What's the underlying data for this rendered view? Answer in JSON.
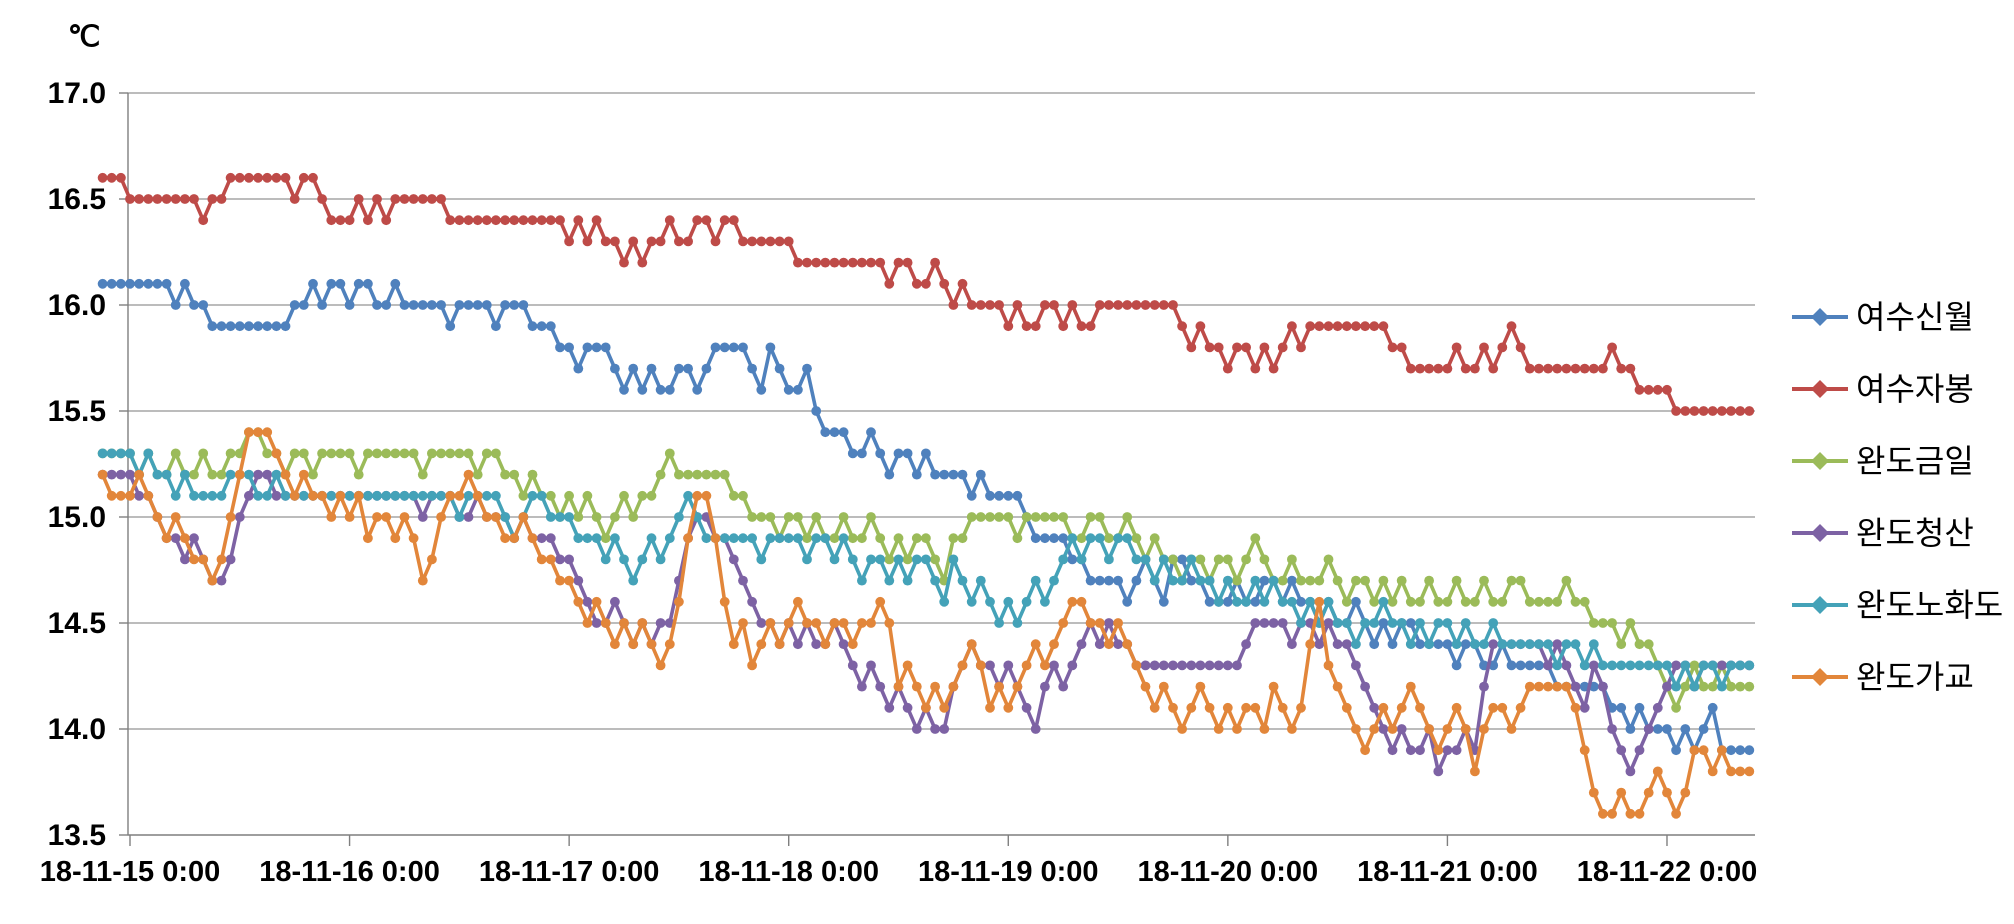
{
  "chart_data": {
    "type": "line",
    "title": "℃",
    "unit_label": "℃",
    "ylim": [
      13.5,
      17.0
    ],
    "yticks": [
      "17.0",
      "16.5",
      "16.0",
      "15.5",
      "15.0",
      "14.5",
      "14.0",
      "13.5"
    ],
    "ytick_values": [
      17.0,
      16.5,
      16.0,
      15.5,
      15.0,
      14.5,
      14.0,
      13.5
    ],
    "xticklabels": [
      "18-11-15 0:00",
      "18-11-16 0:00",
      "18-11-17 0:00",
      "18-11-18 0:00",
      "18-11-19 0:00",
      "18-11-20 0:00",
      "18-11-21 0:00",
      "18-11-22 0:00"
    ],
    "grid": true,
    "legend_position": "right",
    "start_offset_hours": -3,
    "interval_hours": 1,
    "axis_color": "#7f7f7f",
    "grid_color": "#a6a6a6",
    "label_color": "#000000",
    "series": [
      {
        "name": "여수신월",
        "color": "#4F81BD",
        "values": [
          16.1,
          16.1,
          16.1,
          16.1,
          16.1,
          16.1,
          16.1,
          16.1,
          16.0,
          16.1,
          16.0,
          16.0,
          15.9,
          15.9,
          15.9,
          15.9,
          15.9,
          15.9,
          15.9,
          15.9,
          15.9,
          16.0,
          16.0,
          16.1,
          16.0,
          16.1,
          16.1,
          16.0,
          16.1,
          16.1,
          16.0,
          16.0,
          16.1,
          16.0,
          16.0,
          16.0,
          16.0,
          16.0,
          15.9,
          16.0,
          16.0,
          16.0,
          16.0,
          15.9,
          16.0,
          16.0,
          16.0,
          15.9,
          15.9,
          15.9,
          15.8,
          15.8,
          15.7,
          15.8,
          15.8,
          15.8,
          15.7,
          15.6,
          15.7,
          15.6,
          15.7,
          15.6,
          15.6,
          15.7,
          15.7,
          15.6,
          15.7,
          15.8,
          15.8,
          15.8,
          15.8,
          15.7,
          15.6,
          15.8,
          15.7,
          15.6,
          15.6,
          15.7,
          15.5,
          15.4,
          15.4,
          15.4,
          15.3,
          15.3,
          15.4,
          15.3,
          15.2,
          15.3,
          15.3,
          15.2,
          15.3,
          15.2,
          15.2,
          15.2,
          15.2,
          15.1,
          15.2,
          15.1,
          15.1,
          15.1,
          15.1,
          15.0,
          14.9,
          14.9,
          14.9,
          14.9,
          14.8,
          14.8,
          14.7,
          14.7,
          14.7,
          14.7,
          14.6,
          14.7,
          14.8,
          14.7,
          14.6,
          14.8,
          14.8,
          14.7,
          14.7,
          14.6,
          14.6,
          14.6,
          14.7,
          14.6,
          14.6,
          14.7,
          14.7,
          14.6,
          14.7,
          14.6,
          14.6,
          14.5,
          14.6,
          14.5,
          14.5,
          14.6,
          14.5,
          14.4,
          14.5,
          14.4,
          14.5,
          14.5,
          14.4,
          14.4,
          14.4,
          14.4,
          14.3,
          14.4,
          14.4,
          14.3,
          14.3,
          14.4,
          14.3,
          14.3,
          14.3,
          14.3,
          14.3,
          14.2,
          14.2,
          14.2,
          14.2,
          14.2,
          14.2,
          14.1,
          14.1,
          14.0,
          14.1,
          14.0,
          14.0,
          14.0,
          13.9,
          14.0,
          13.9,
          14.0,
          14.1,
          13.9,
          13.9,
          13.9,
          13.9
        ]
      },
      {
        "name": "여수자봉",
        "color": "#BE4B48",
        "values": [
          16.6,
          16.6,
          16.6,
          16.5,
          16.5,
          16.5,
          16.5,
          16.5,
          16.5,
          16.5,
          16.5,
          16.4,
          16.5,
          16.5,
          16.6,
          16.6,
          16.6,
          16.6,
          16.6,
          16.6,
          16.6,
          16.5,
          16.6,
          16.6,
          16.5,
          16.4,
          16.4,
          16.4,
          16.5,
          16.4,
          16.5,
          16.4,
          16.5,
          16.5,
          16.5,
          16.5,
          16.5,
          16.5,
          16.4,
          16.4,
          16.4,
          16.4,
          16.4,
          16.4,
          16.4,
          16.4,
          16.4,
          16.4,
          16.4,
          16.4,
          16.4,
          16.3,
          16.4,
          16.3,
          16.4,
          16.3,
          16.3,
          16.2,
          16.3,
          16.2,
          16.3,
          16.3,
          16.4,
          16.3,
          16.3,
          16.4,
          16.4,
          16.3,
          16.4,
          16.4,
          16.3,
          16.3,
          16.3,
          16.3,
          16.3,
          16.3,
          16.2,
          16.2,
          16.2,
          16.2,
          16.2,
          16.2,
          16.2,
          16.2,
          16.2,
          16.2,
          16.1,
          16.2,
          16.2,
          16.1,
          16.1,
          16.2,
          16.1,
          16.0,
          16.1,
          16.0,
          16.0,
          16.0,
          16.0,
          15.9,
          16.0,
          15.9,
          15.9,
          16.0,
          16.0,
          15.9,
          16.0,
          15.9,
          15.9,
          16.0,
          16.0,
          16.0,
          16.0,
          16.0,
          16.0,
          16.0,
          16.0,
          16.0,
          15.9,
          15.8,
          15.9,
          15.8,
          15.8,
          15.7,
          15.8,
          15.8,
          15.7,
          15.8,
          15.7,
          15.8,
          15.9,
          15.8,
          15.9,
          15.9,
          15.9,
          15.9,
          15.9,
          15.9,
          15.9,
          15.9,
          15.9,
          15.8,
          15.8,
          15.7,
          15.7,
          15.7,
          15.7,
          15.7,
          15.8,
          15.7,
          15.7,
          15.8,
          15.7,
          15.8,
          15.9,
          15.8,
          15.7,
          15.7,
          15.7,
          15.7,
          15.7,
          15.7,
          15.7,
          15.7,
          15.7,
          15.8,
          15.7,
          15.7,
          15.6,
          15.6,
          15.6,
          15.6,
          15.5,
          15.5,
          15.5,
          15.5,
          15.5,
          15.5,
          15.5,
          15.5,
          15.5
        ]
      },
      {
        "name": "완도금일",
        "color": "#9BBB59",
        "values": [
          15.3,
          15.3,
          15.3,
          15.3,
          15.2,
          15.3,
          15.2,
          15.2,
          15.3,
          15.2,
          15.2,
          15.3,
          15.2,
          15.2,
          15.3,
          15.3,
          15.4,
          15.4,
          15.3,
          15.3,
          15.2,
          15.3,
          15.3,
          15.2,
          15.3,
          15.3,
          15.3,
          15.3,
          15.2,
          15.3,
          15.3,
          15.3,
          15.3,
          15.3,
          15.3,
          15.2,
          15.3,
          15.3,
          15.3,
          15.3,
          15.3,
          15.2,
          15.3,
          15.3,
          15.2,
          15.2,
          15.1,
          15.2,
          15.1,
          15.1,
          15.0,
          15.1,
          15.0,
          15.1,
          15.0,
          14.9,
          15.0,
          15.1,
          15.0,
          15.1,
          15.1,
          15.2,
          15.3,
          15.2,
          15.2,
          15.2,
          15.2,
          15.2,
          15.2,
          15.1,
          15.1,
          15.0,
          15.0,
          15.0,
          14.9,
          15.0,
          15.0,
          14.9,
          15.0,
          14.9,
          14.9,
          15.0,
          14.9,
          14.9,
          15.0,
          14.9,
          14.8,
          14.9,
          14.8,
          14.9,
          14.9,
          14.8,
          14.7,
          14.9,
          14.9,
          15.0,
          15.0,
          15.0,
          15.0,
          15.0,
          14.9,
          15.0,
          15.0,
          15.0,
          15.0,
          15.0,
          14.9,
          14.9,
          15.0,
          15.0,
          14.9,
          14.9,
          15.0,
          14.9,
          14.8,
          14.9,
          14.8,
          14.8,
          14.7,
          14.8,
          14.8,
          14.7,
          14.8,
          14.8,
          14.7,
          14.8,
          14.9,
          14.8,
          14.7,
          14.7,
          14.8,
          14.7,
          14.7,
          14.7,
          14.8,
          14.7,
          14.6,
          14.7,
          14.7,
          14.6,
          14.7,
          14.6,
          14.7,
          14.6,
          14.6,
          14.7,
          14.6,
          14.6,
          14.7,
          14.6,
          14.6,
          14.7,
          14.6,
          14.6,
          14.7,
          14.7,
          14.6,
          14.6,
          14.6,
          14.6,
          14.7,
          14.6,
          14.6,
          14.5,
          14.5,
          14.5,
          14.4,
          14.5,
          14.4,
          14.4,
          14.3,
          14.2,
          14.1,
          14.2,
          14.3,
          14.2,
          14.2,
          14.3,
          14.2,
          14.2,
          14.2
        ]
      },
      {
        "name": "완도청산",
        "color": "#7D62A4",
        "values": [
          15.2,
          15.2,
          15.2,
          15.2,
          15.1,
          15.1,
          15.0,
          14.9,
          14.9,
          14.8,
          14.9,
          14.8,
          14.7,
          14.7,
          14.8,
          15.0,
          15.1,
          15.2,
          15.2,
          15.1,
          15.1,
          15.1,
          15.1,
          15.1,
          15.1,
          15.1,
          15.1,
          15.1,
          15.1,
          15.1,
          15.1,
          15.1,
          15.1,
          15.1,
          15.1,
          15.0,
          15.1,
          15.1,
          15.1,
          15.0,
          15.0,
          15.1,
          15.0,
          15.0,
          15.0,
          14.9,
          15.0,
          14.9,
          14.9,
          14.9,
          14.8,
          14.8,
          14.7,
          14.6,
          14.5,
          14.5,
          14.6,
          14.5,
          14.4,
          14.5,
          14.4,
          14.5,
          14.5,
          14.7,
          14.9,
          15.0,
          15.0,
          14.9,
          14.9,
          14.8,
          14.7,
          14.6,
          14.5,
          14.5,
          14.4,
          14.5,
          14.4,
          14.5,
          14.4,
          14.4,
          14.5,
          14.4,
          14.3,
          14.2,
          14.3,
          14.2,
          14.1,
          14.2,
          14.1,
          14.0,
          14.1,
          14.0,
          14.0,
          14.2,
          14.3,
          14.4,
          14.3,
          14.3,
          14.2,
          14.3,
          14.2,
          14.1,
          14.0,
          14.2,
          14.3,
          14.2,
          14.3,
          14.4,
          14.5,
          14.4,
          14.5,
          14.4,
          14.4,
          14.3,
          14.3,
          14.3,
          14.3,
          14.3,
          14.3,
          14.3,
          14.3,
          14.3,
          14.3,
          14.3,
          14.3,
          14.4,
          14.5,
          14.5,
          14.5,
          14.5,
          14.4,
          14.5,
          14.5,
          14.4,
          14.5,
          14.4,
          14.4,
          14.3,
          14.2,
          14.1,
          14.0,
          13.9,
          14.0,
          13.9,
          13.9,
          14.0,
          13.8,
          13.9,
          13.9,
          14.0,
          13.9,
          14.2,
          14.4,
          14.4,
          14.4,
          14.4,
          14.4,
          14.4,
          14.3,
          14.4,
          14.3,
          14.2,
          14.1,
          14.3,
          14.2,
          14.0,
          13.9,
          13.8,
          13.9,
          14.0,
          14.1,
          14.2,
          14.3,
          14.3,
          14.2,
          14.3,
          14.3,
          14.3,
          14.3,
          14.3,
          14.3
        ]
      },
      {
        "name": "완도노화도",
        "color": "#44A2B8",
        "values": [
          15.3,
          15.3,
          15.3,
          15.3,
          15.2,
          15.3,
          15.2,
          15.2,
          15.1,
          15.2,
          15.1,
          15.1,
          15.1,
          15.1,
          15.2,
          15.2,
          15.2,
          15.1,
          15.1,
          15.2,
          15.1,
          15.1,
          15.1,
          15.1,
          15.1,
          15.1,
          15.1,
          15.1,
          15.1,
          15.1,
          15.1,
          15.1,
          15.1,
          15.1,
          15.1,
          15.1,
          15.1,
          15.1,
          15.1,
          15.0,
          15.1,
          15.1,
          15.1,
          15.1,
          15.0,
          14.9,
          15.0,
          15.1,
          15.1,
          15.0,
          15.0,
          15.0,
          14.9,
          14.9,
          14.9,
          14.8,
          14.9,
          14.8,
          14.7,
          14.8,
          14.9,
          14.8,
          14.9,
          15.0,
          15.1,
          15.0,
          14.9,
          14.9,
          14.9,
          14.9,
          14.9,
          14.9,
          14.8,
          14.9,
          14.9,
          14.9,
          14.9,
          14.8,
          14.9,
          14.9,
          14.8,
          14.9,
          14.8,
          14.7,
          14.8,
          14.8,
          14.7,
          14.8,
          14.7,
          14.8,
          14.8,
          14.7,
          14.6,
          14.8,
          14.7,
          14.6,
          14.7,
          14.6,
          14.5,
          14.6,
          14.5,
          14.6,
          14.7,
          14.6,
          14.7,
          14.8,
          14.9,
          14.8,
          14.9,
          14.9,
          14.8,
          14.9,
          14.9,
          14.8,
          14.8,
          14.7,
          14.8,
          14.7,
          14.7,
          14.8,
          14.7,
          14.7,
          14.6,
          14.7,
          14.6,
          14.6,
          14.7,
          14.6,
          14.7,
          14.6,
          14.6,
          14.5,
          14.6,
          14.5,
          14.6,
          14.5,
          14.5,
          14.4,
          14.5,
          14.5,
          14.6,
          14.5,
          14.5,
          14.4,
          14.5,
          14.4,
          14.5,
          14.5,
          14.4,
          14.5,
          14.4,
          14.4,
          14.5,
          14.4,
          14.4,
          14.4,
          14.4,
          14.4,
          14.4,
          14.3,
          14.4,
          14.4,
          14.3,
          14.4,
          14.3,
          14.3,
          14.3,
          14.3,
          14.3,
          14.3,
          14.3,
          14.3,
          14.2,
          14.3,
          14.2,
          14.3,
          14.3,
          14.2,
          14.3,
          14.3,
          14.3
        ]
      },
      {
        "name": "완도가교",
        "color": "#E2863A",
        "values": [
          15.2,
          15.1,
          15.1,
          15.1,
          15.2,
          15.1,
          15.0,
          14.9,
          15.0,
          14.9,
          14.8,
          14.8,
          14.7,
          14.8,
          15.0,
          15.2,
          15.4,
          15.4,
          15.4,
          15.3,
          15.2,
          15.1,
          15.2,
          15.1,
          15.1,
          15.0,
          15.1,
          15.0,
          15.1,
          14.9,
          15.0,
          15.0,
          14.9,
          15.0,
          14.9,
          14.7,
          14.8,
          15.0,
          15.1,
          15.1,
          15.2,
          15.1,
          15.0,
          15.0,
          14.9,
          14.9,
          15.0,
          14.9,
          14.8,
          14.8,
          14.7,
          14.7,
          14.6,
          14.5,
          14.6,
          14.5,
          14.4,
          14.5,
          14.4,
          14.5,
          14.4,
          14.3,
          14.4,
          14.6,
          14.9,
          15.1,
          15.1,
          14.9,
          14.6,
          14.4,
          14.5,
          14.3,
          14.4,
          14.5,
          14.4,
          14.5,
          14.6,
          14.5,
          14.5,
          14.4,
          14.5,
          14.5,
          14.4,
          14.5,
          14.5,
          14.6,
          14.5,
          14.2,
          14.3,
          14.2,
          14.1,
          14.2,
          14.1,
          14.2,
          14.3,
          14.4,
          14.3,
          14.1,
          14.2,
          14.1,
          14.2,
          14.3,
          14.4,
          14.3,
          14.4,
          14.5,
          14.6,
          14.6,
          14.5,
          14.5,
          14.4,
          14.5,
          14.4,
          14.3,
          14.2,
          14.1,
          14.2,
          14.1,
          14.0,
          14.1,
          14.2,
          14.1,
          14.0,
          14.1,
          14.0,
          14.1,
          14.1,
          14.0,
          14.2,
          14.1,
          14.0,
          14.1,
          14.4,
          14.6,
          14.3,
          14.2,
          14.1,
          14.0,
          13.9,
          14.0,
          14.1,
          14.0,
          14.1,
          14.2,
          14.1,
          14.0,
          13.9,
          14.0,
          14.1,
          14.0,
          13.8,
          14.0,
          14.1,
          14.1,
          14.0,
          14.1,
          14.2,
          14.2,
          14.2,
          14.2,
          14.2,
          14.1,
          13.9,
          13.7,
          13.6,
          13.6,
          13.7,
          13.6,
          13.6,
          13.7,
          13.8,
          13.7,
          13.6,
          13.7,
          13.9,
          13.9,
          13.8,
          13.9,
          13.8,
          13.8,
          13.8
        ]
      }
    ]
  }
}
